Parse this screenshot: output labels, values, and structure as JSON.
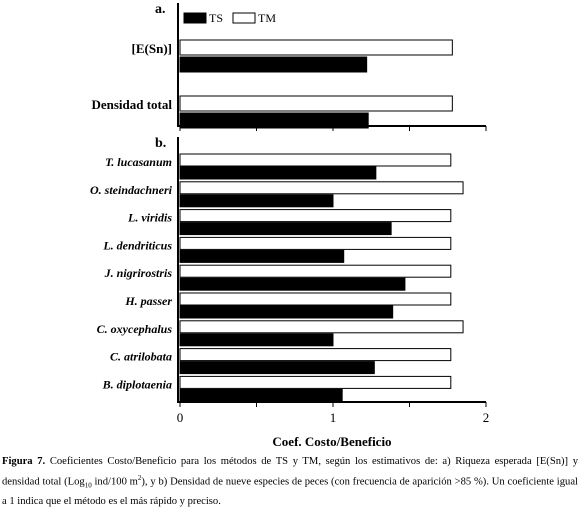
{
  "chart_data": [
    {
      "panel_label": "a.",
      "type": "bar",
      "orientation": "horizontal",
      "categories": [
        "[E(Sn)]",
        "Densidad total"
      ],
      "series": [
        {
          "name": "TS",
          "values": [
            1.22,
            1.23
          ],
          "color": "#000000"
        },
        {
          "name": "TM",
          "values": [
            1.78,
            1.78
          ],
          "color": "#ffffff"
        }
      ],
      "xlim": [
        0,
        2
      ],
      "legend": "top-left",
      "grid": false
    },
    {
      "panel_label": "b.",
      "type": "bar",
      "orientation": "horizontal",
      "categories": [
        "T. lucasanum",
        "O. steindachneri",
        "L. viridis",
        "L. dendriticus",
        "J. nigrirostris",
        "H. passer",
        "C. oxycephalus",
        "C. atrilobata",
        "B. diplotaenia"
      ],
      "series": [
        {
          "name": "TS",
          "values": [
            1.28,
            1.0,
            1.38,
            1.07,
            1.47,
            1.39,
            1.0,
            1.27,
            1.06
          ],
          "color": "#000000"
        },
        {
          "name": "TM",
          "values": [
            1.77,
            1.85,
            1.77,
            1.77,
            1.77,
            1.77,
            1.85,
            1.77,
            1.77
          ],
          "color": "#ffffff"
        }
      ],
      "xlim": [
        0,
        2
      ],
      "xticks": [
        "0",
        "1",
        "2"
      ],
      "xlabel": "Coef. Costo/Beneficio",
      "grid": false
    }
  ],
  "caption": {
    "label": "Figura 7.",
    "text_1": " Coeficientes Costo/Beneficio para los métodos de TS y TM, según los estimativos de: a) Riqueza esperada [E(Sn)] y densidad total (Log",
    "sub": "10",
    "text_2": " ind/100 m",
    "sup": "2",
    "text_3": "), y b) Densidad de nueve especies de peces (con frecuencia de aparición >85 %). Un coeficiente igual a 1 indica que el método es el más rápido y preciso."
  }
}
